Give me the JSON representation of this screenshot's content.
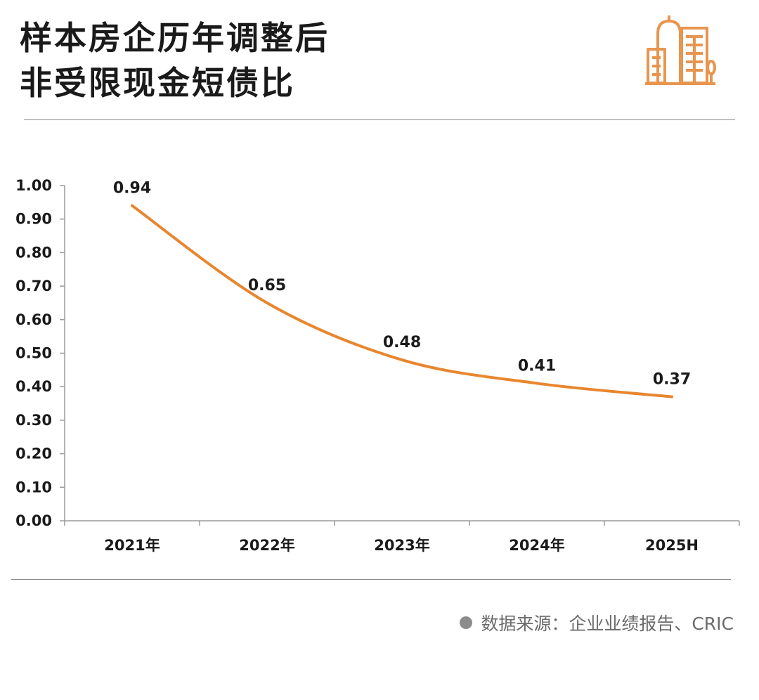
{
  "header": {
    "title_line1": "样本房企历年调整后",
    "title_line2": "非受限现金短债比",
    "icon": "buildings-icon",
    "accent_color": "#e8954f"
  },
  "chart_data": {
    "type": "line",
    "title": "样本房企历年调整后非受限现金短债比",
    "categories": [
      "2021年",
      "2022年",
      "2023年",
      "2024年",
      "2025H"
    ],
    "values": [
      0.94,
      0.65,
      0.48,
      0.41,
      0.37
    ],
    "data_labels": [
      "0.94",
      "0.65",
      "0.48",
      "0.41",
      "0.37"
    ],
    "y_ticks": [
      "0.00",
      "0.10",
      "0.20",
      "0.30",
      "0.40",
      "0.50",
      "0.60",
      "0.70",
      "0.80",
      "0.90",
      "1.00"
    ],
    "ylim": [
      0,
      1
    ],
    "xlabel": "",
    "ylabel": "",
    "grid": false,
    "line_color": "#e8862e"
  },
  "footer": {
    "source_text": "数据来源：企业业绩报告、CRIC"
  }
}
